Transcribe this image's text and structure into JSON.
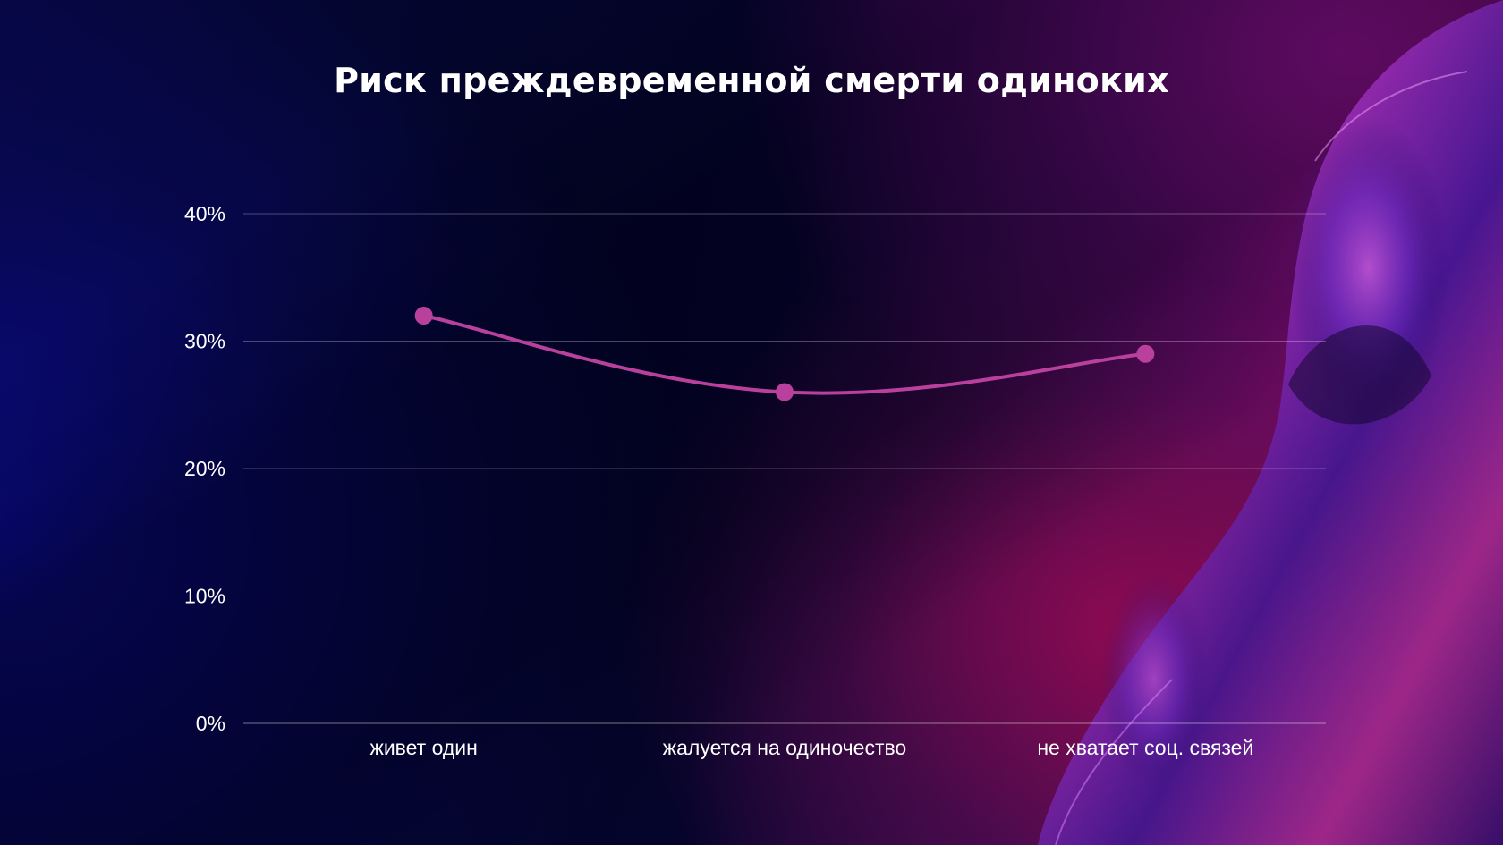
{
  "slide": {
    "title": "Риск преждевременной смерти одиноких"
  },
  "colors": {
    "line": "#b9409c",
    "grid": "rgba(255,255,255,0.28)",
    "text": "#ffffff"
  },
  "chart_data": {
    "type": "line",
    "title": "Риск преждевременной смерти одиноких",
    "categories": [
      "живет один",
      "жалуется на одиночество",
      "не хватает соц. связей"
    ],
    "series": [
      {
        "values": [
          32,
          26,
          29
        ]
      }
    ],
    "ylim": [
      0,
      40
    ],
    "yticks": [
      0,
      10,
      20,
      30,
      40
    ],
    "ytick_labels": [
      "0%",
      "10%",
      "20%",
      "30%",
      "40%"
    ],
    "grid": true,
    "legend": "none",
    "smooth": true
  }
}
